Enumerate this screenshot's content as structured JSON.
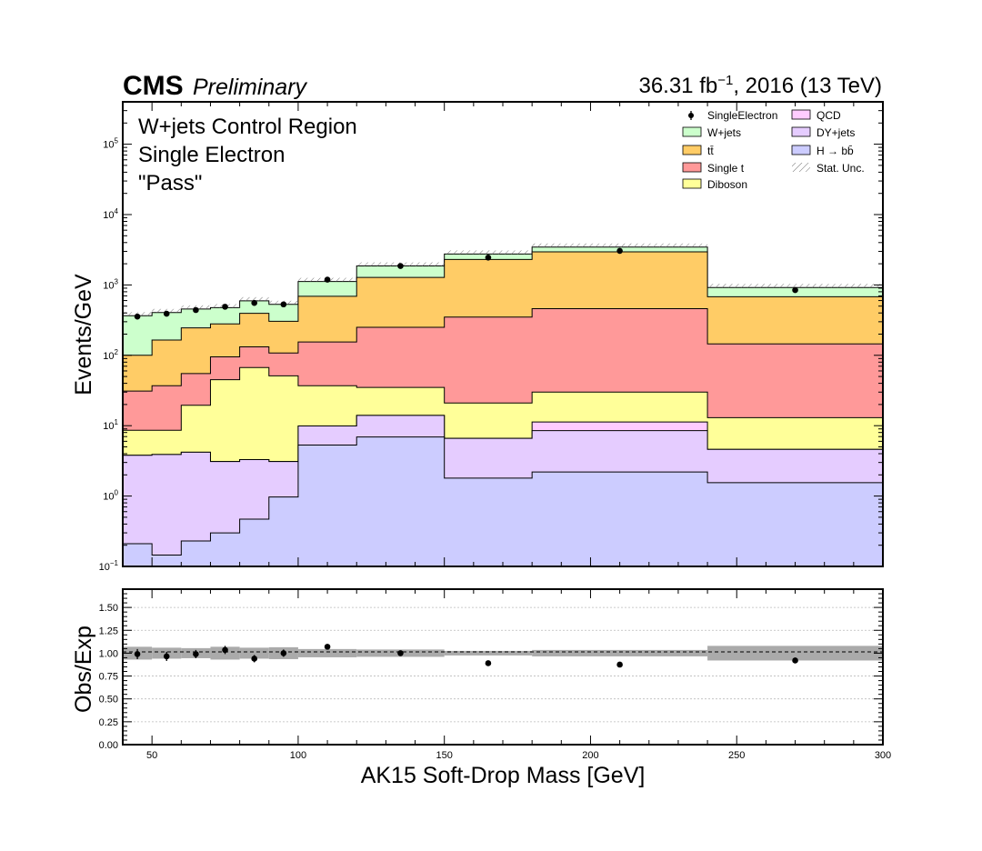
{
  "header": {
    "experiment": "CMS",
    "status": "Preliminary",
    "lumi_value": "36.31 fb",
    "lumi_exp": "−1",
    "lumi_tail": ", 2016 (13 TeV)"
  },
  "region_labels": [
    "W+jets Control Region",
    "Single Electron",
    "\"Pass\""
  ],
  "chart_data": [
    {
      "type": "stacked-histogram",
      "ylabel": "Events/GeV",
      "yscale": "log",
      "ylim": [
        0.1,
        400000
      ],
      "xlim": [
        40,
        300
      ],
      "x_edges": [
        40,
        50,
        60,
        70,
        80,
        90,
        100,
        120,
        150,
        180,
        240,
        300
      ],
      "y_tick_labels": [
        {
          "exp": "−1",
          "value": 0.1
        },
        {
          "exp": "0",
          "value": 1
        },
        {
          "exp": "1",
          "value": 10
        },
        {
          "exp": "2",
          "value": 100
        },
        {
          "exp": "3",
          "value": 1000
        },
        {
          "exp": "4",
          "value": 10000
        },
        {
          "exp": "5",
          "value": 100000
        }
      ],
      "stack_order_bottom_to_top": [
        "H → bb̄",
        "DY+jets",
        "QCD",
        "Diboson",
        "Single t",
        "tt̄",
        "W+jets"
      ],
      "cumulative_tops": [
        {
          "name": "H → bb̄",
          "color": "#ccccff",
          "values": [
            0.21,
            0.145,
            0.23,
            0.3,
            0.47,
            0.97,
            5.3,
            6.9,
            1.8,
            2.2,
            1.55
          ]
        },
        {
          "name": "DY+jets",
          "color": "#e5ccff",
          "values": [
            3.8,
            3.9,
            4.2,
            3.1,
            3.3,
            3.1,
            9.9,
            14.0,
            6.6,
            8.5,
            4.6
          ]
        },
        {
          "name": "QCD",
          "color": "#ffccff",
          "values": [
            3.8,
            3.9,
            4.2,
            3.1,
            3.3,
            3.1,
            9.9,
            14.0,
            6.6,
            11.3,
            4.6
          ]
        },
        {
          "name": "Diboson",
          "color": "#ffff99",
          "values": [
            8.6,
            8.6,
            19.5,
            45.0,
            67.0,
            51.0,
            37.0,
            35.0,
            21.0,
            30.0,
            13.0
          ]
        },
        {
          "name": "Single t",
          "color": "#ff9999",
          "values": [
            31.0,
            37.0,
            55.0,
            95.0,
            132.0,
            108.0,
            155.0,
            250.0,
            350.0,
            460.0,
            145.0
          ]
        },
        {
          "name": "tt̄",
          "color": "#ffcc66",
          "values": [
            100.0,
            165.0,
            245.0,
            280.0,
            395.0,
            305.0,
            690.0,
            1280.0,
            2300.0,
            2950.0,
            680.0
          ]
        },
        {
          "name": "W+jets",
          "color": "#ccffcc",
          "values": [
            365.0,
            405.0,
            455.0,
            475.0,
            595.0,
            530.0,
            1120.0,
            1860.0,
            2750.0,
            3450.0,
            920.0
          ]
        }
      ],
      "data_points": {
        "name": "SingleElectron",
        "x": [
          45,
          55,
          65,
          75,
          85,
          95,
          110,
          135,
          165,
          210,
          270
        ],
        "y": [
          355,
          390,
          440,
          490,
          555,
          530,
          1190,
          1860,
          2450,
          3050,
          845
        ]
      },
      "uncertainty_label": "Stat. Unc."
    },
    {
      "type": "ratio",
      "xlabel": "AK15 Soft-Drop Mass [GeV]",
      "ylabel": "Obs/Exp",
      "xlim": [
        40,
        300
      ],
      "ylim": [
        0.0,
        1.7
      ],
      "x_ticks": [
        "50",
        "100",
        "150",
        "200",
        "250",
        "300"
      ],
      "x_tick_values": [
        50,
        100,
        150,
        200,
        250,
        300
      ],
      "y_ticks": [
        "0.00",
        "0.25",
        "0.50",
        "0.75",
        "1.00",
        "1.25",
        "1.50"
      ],
      "y_tick_values": [
        0.0,
        0.25,
        0.5,
        0.75,
        1.0,
        1.25,
        1.5
      ],
      "ratio_points": {
        "x": [
          45,
          55,
          65,
          75,
          85,
          95,
          110,
          135,
          165,
          210,
          270
        ],
        "y": [
          0.99,
          0.965,
          0.99,
          1.035,
          0.94,
          1.0,
          1.07,
          1.0,
          0.89,
          0.875,
          0.92
        ],
        "err": [
          0.055,
          0.05,
          0.045,
          0.045,
          0.04,
          0.04,
          0.03,
          0.025,
          0.02,
          0.02,
          0.03
        ]
      },
      "stat_band_halfwidth": [
        0.07,
        0.06,
        0.055,
        0.07,
        0.06,
        0.065,
        0.045,
        0.04,
        0.025,
        0.035,
        0.08
      ]
    }
  ],
  "legend": [
    {
      "label": "SingleElectron",
      "style": "marker",
      "color": "#000000"
    },
    {
      "label": "QCD",
      "style": "box",
      "color": "#ffccff"
    },
    {
      "label": "W+jets",
      "style": "box",
      "color": "#ccffcc"
    },
    {
      "label": "DY+jets",
      "style": "box",
      "color": "#e5ccff"
    },
    {
      "label": "tt̄",
      "style": "box",
      "color": "#ffcc66"
    },
    {
      "label": "H → bb̄",
      "style": "box",
      "color": "#ccccff"
    },
    {
      "label": "Single t",
      "style": "box",
      "color": "#ff9999"
    },
    {
      "label": "Stat. Unc.",
      "style": "hatch",
      "color": "#888888"
    },
    {
      "label": "Diboson",
      "style": "box",
      "color": "#ffff99"
    }
  ]
}
